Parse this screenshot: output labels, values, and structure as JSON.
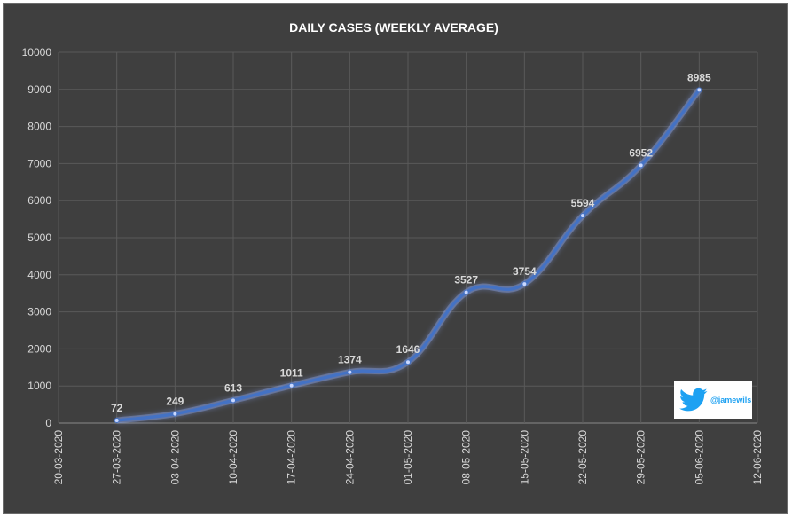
{
  "chart_data": {
    "type": "line",
    "title": "DAILY CASES (WEEKLY AVERAGE)",
    "xlabel": "",
    "ylabel": "",
    "ylim": [
      0,
      10000
    ],
    "yticks": [
      0,
      1000,
      2000,
      3000,
      4000,
      5000,
      6000,
      7000,
      8000,
      9000,
      10000
    ],
    "xticks": [
      "20-03-2020",
      "27-03-2020",
      "03-04-2020",
      "10-04-2020",
      "17-04-2020",
      "24-04-2020",
      "01-05-2020",
      "08-05-2020",
      "15-05-2020",
      "22-05-2020",
      "29-05-2020",
      "05-06-2020",
      "12-06-2020"
    ],
    "x": [
      "27-03-2020",
      "03-04-2020",
      "10-04-2020",
      "17-04-2020",
      "24-04-2020",
      "01-05-2020",
      "08-05-2020",
      "15-05-2020",
      "22-05-2020",
      "29-05-2020",
      "05-06-2020"
    ],
    "values": [
      72,
      249,
      613,
      1011,
      1374,
      1646,
      3527,
      3754,
      5594,
      6952,
      8985
    ],
    "grid": true,
    "legend": "none",
    "colors": {
      "line": "#4472c4",
      "glow": "#8fb0ff",
      "background": "#3f3f3f",
      "grid": "#5a5a5a"
    }
  },
  "watermark": {
    "handle": "@jamewils",
    "icon": "twitter-bird-icon",
    "color": "#1da1f2"
  }
}
